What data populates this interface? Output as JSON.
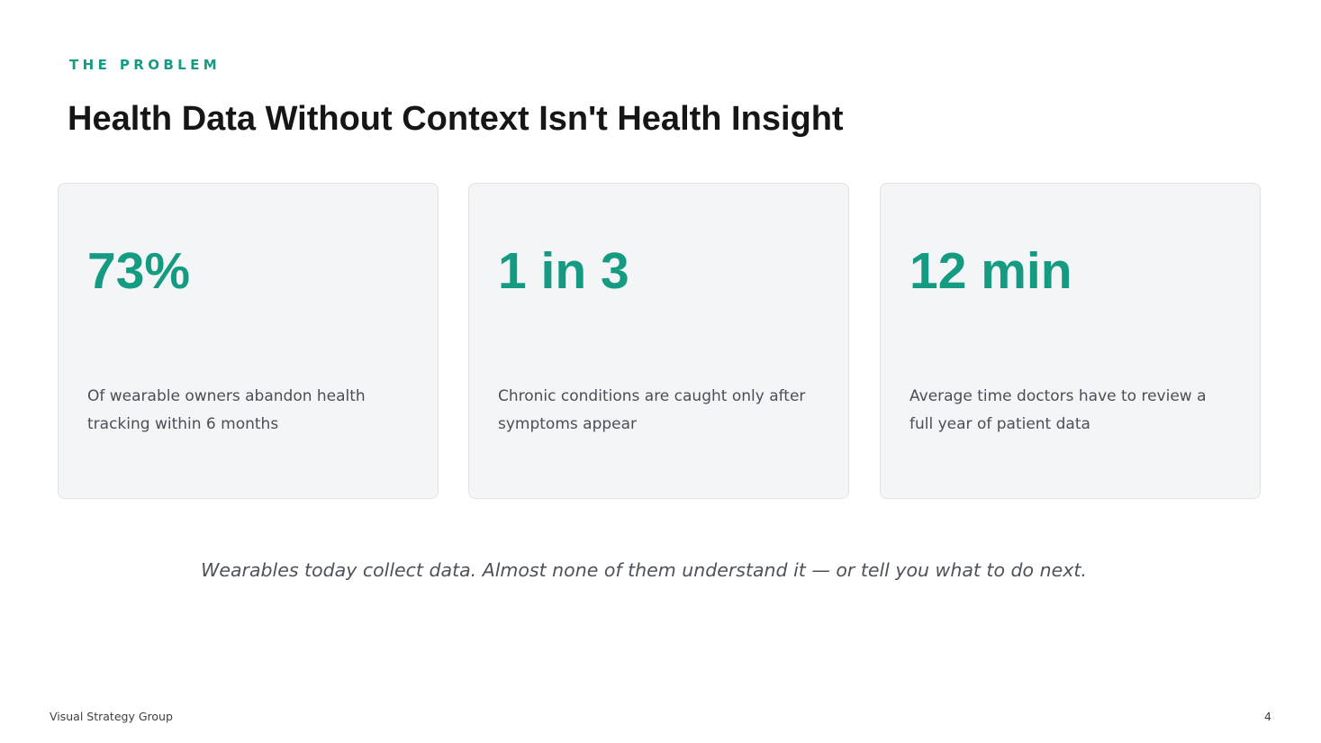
{
  "header": {
    "eyebrow": "THE PROBLEM",
    "title": "Health Data Without Context Isn't Health Insight"
  },
  "stats": [
    {
      "value": "73%",
      "description": "Of wearable owners abandon health tracking within 6 months"
    },
    {
      "value": "1 in 3",
      "description": "Chronic conditions are caught only after symptoms appear"
    },
    {
      "value": "12 min",
      "description": "Average time doctors have to review a full year of patient data"
    }
  ],
  "tagline": "Wearables today collect data. Almost none of them understand it — or tell you what to do next.",
  "footer": {
    "brand": "Visual Strategy Group",
    "page_number": "4"
  },
  "colors": {
    "accent": "#169b83",
    "card_background": "#f4f5f7",
    "title": "#161616",
    "body_text": "#4a4f57"
  }
}
